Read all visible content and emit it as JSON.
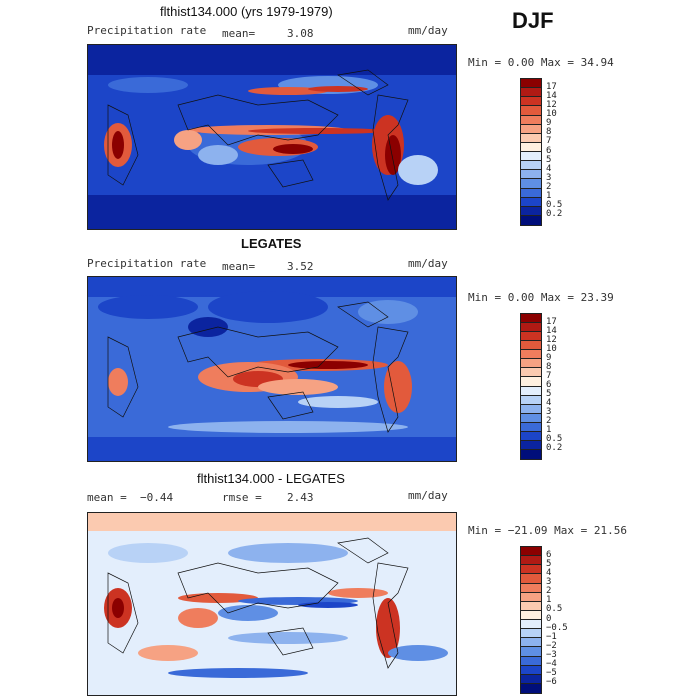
{
  "season": "DJF",
  "panels": [
    {
      "id": "model",
      "title": "flthist134.000 (yrs 1979-1979)",
      "left_label": "Precipitation rate",
      "mean_label": "mean=",
      "mean_value": "3.08",
      "units": "mm/day",
      "minmax": "Min =    0.00 Max =   34.94",
      "colorbar_labels": [
        "17",
        "14",
        "12",
        "10",
        "9",
        "8",
        "7",
        "6",
        "5",
        "4",
        "3",
        "2",
        "1",
        "0.5",
        "0.2"
      ],
      "colorbar_colors": [
        "#8b0000",
        "#b01a14",
        "#cc3322",
        "#e25a3c",
        "#ef7d5d",
        "#f6a283",
        "#fbcab0",
        "#fff0e0",
        "#e3eefc",
        "#b8d2f6",
        "#8db2ee",
        "#5f8fe4",
        "#3a6ad8",
        "#1c45c8",
        "#0b249f",
        "#000e7a"
      ]
    },
    {
      "id": "obs",
      "title": "LEGATES",
      "left_label": "Precipitation rate",
      "mean_label": "mean=",
      "mean_value": "3.52",
      "units": "mm/day",
      "minmax": "Min =    0.00 Max =   23.39",
      "colorbar_labels": [
        "17",
        "14",
        "12",
        "10",
        "9",
        "8",
        "7",
        "6",
        "5",
        "4",
        "3",
        "2",
        "1",
        "0.5",
        "0.2"
      ],
      "colorbar_colors": [
        "#8b0000",
        "#b01a14",
        "#cc3322",
        "#e25a3c",
        "#ef7d5d",
        "#f6a283",
        "#fbcab0",
        "#fff0e0",
        "#e3eefc",
        "#b8d2f6",
        "#8db2ee",
        "#5f8fe4",
        "#3a6ad8",
        "#1c45c8",
        "#0b249f",
        "#000e7a"
      ]
    },
    {
      "id": "diff",
      "title": "flthist134.000 - LEGATES",
      "left_label": "mean =",
      "mean_label": "rmse =",
      "mean_value": "2.43",
      "diff_mean": "−0.44",
      "units": "mm/day",
      "minmax": "Min =  −21.09 Max =   21.56",
      "colorbar_labels": [
        "6",
        "5",
        "4",
        "3",
        "2",
        "1",
        "0.5",
        "0",
        "−0.5",
        "−1",
        "−2",
        "−3",
        "−4",
        "−5",
        "−6"
      ],
      "colorbar_colors": [
        "#8b0000",
        "#b01a14",
        "#cc3322",
        "#e25a3c",
        "#ef7d5d",
        "#f6a283",
        "#fbcab0",
        "#fff0e0",
        "#e3eefc",
        "#b8d2f6",
        "#8db2ee",
        "#5f8fe4",
        "#3a6ad8",
        "#1c45c8",
        "#0b249f",
        "#000e7a"
      ]
    }
  ]
}
